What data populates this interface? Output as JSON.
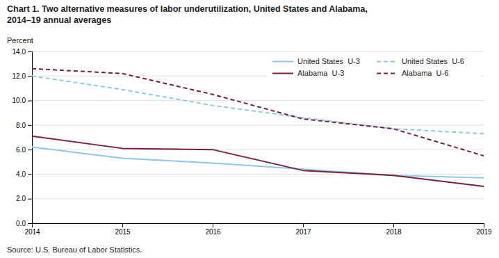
{
  "chart_data": {
    "type": "line",
    "title": "Chart 1. Two alternative measures of labor underutilization, United States and Alabama,\n2014–19 annual averages",
    "ylabel": "Percent",
    "source": "Source: U.S. Bureau of Labor Statistics.",
    "x": [
      2014,
      2015,
      2016,
      2017,
      2018,
      2019
    ],
    "xlim": [
      2014,
      2019
    ],
    "xticks": [
      2014,
      2015,
      2016,
      2017,
      2018,
      2019
    ],
    "ylim": [
      0.0,
      14.0
    ],
    "yticks": [
      {
        "value": 0.0,
        "label": "0.0"
      },
      {
        "value": 2.0,
        "label": "2.0"
      },
      {
        "value": 4.0,
        "label": "4.0"
      },
      {
        "value": 6.0,
        "label": "6.0"
      },
      {
        "value": 8.0,
        "label": "8.0"
      },
      {
        "value": 10.0,
        "label": "10.0"
      },
      {
        "value": 12.0,
        "label": "12.0"
      },
      {
        "value": 14.0,
        "label": "14.0"
      }
    ],
    "grid": true,
    "legend": "upper right",
    "series": [
      {
        "name": "United States  U-3",
        "color": "#8EC8E8",
        "line_style": "solid",
        "values": [
          6.2,
          5.3,
          4.9,
          4.4,
          3.9,
          3.7
        ]
      },
      {
        "name": "United States  U-6",
        "color": "#8EC8E8",
        "line_style": "dashed",
        "values": [
          12.0,
          10.9,
          9.6,
          8.6,
          7.7,
          7.3
        ]
      },
      {
        "name": "Alabama  U-3",
        "color": "#7B1F3A",
        "line_style": "solid",
        "values": [
          7.1,
          6.1,
          6.0,
          4.3,
          3.9,
          3.0
        ]
      },
      {
        "name": "Alabama  U-6",
        "color": "#7B1F3A",
        "line_style": "dashed",
        "values": [
          12.6,
          12.2,
          10.5,
          8.5,
          7.7,
          5.5
        ]
      }
    ]
  }
}
